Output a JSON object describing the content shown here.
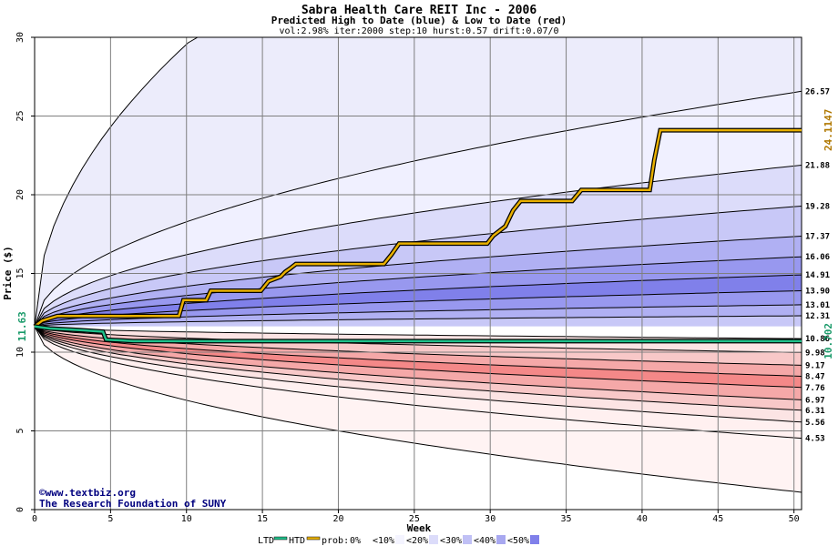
{
  "chart_data": {
    "type": "area",
    "title": "Sabra Health Care REIT Inc - 2006",
    "subtitle": "Predicted High to Date (blue) &  Low to Date (red)",
    "params": "vol:2.98% iter:2000 step:10 hurst:0.57 drift:0.07/0",
    "xlabel": "Week",
    "ylabel": "Price ($)",
    "xlim": [
      0,
      50.5
    ],
    "ylim": [
      0,
      30
    ],
    "x_ticks": [
      "0",
      "5",
      "10",
      "15",
      "20",
      "25",
      "30",
      "35",
      "40",
      "45",
      "50"
    ],
    "y_ticks": [
      "0",
      "5",
      "10",
      "15",
      "20",
      "25",
      "30"
    ],
    "start_price": 11.63,
    "start_price_label": "11.63",
    "high_to_date_value": "24.1147",
    "low_to_date_value": "10.702",
    "grid": true,
    "upper_bands": [
      {
        "label": "26.57",
        "end": 26.57,
        "color": "#f0f0ff"
      },
      {
        "label": "21.88",
        "end": 21.88,
        "color": "#dcdcfa"
      },
      {
        "label": "19.28",
        "end": 19.28,
        "color": "#c8c8f7"
      },
      {
        "label": "17.37",
        "end": 17.37,
        "color": "#b0b0f3"
      },
      {
        "label": "16.06",
        "end": 16.06,
        "color": "#9898ef"
      },
      {
        "label": "14.91",
        "end": 14.91,
        "color": "#8080ea"
      },
      {
        "label": "13.90",
        "end": 13.9,
        "color": "#9898ef"
      },
      {
        "label": "13.01",
        "end": 13.01,
        "color": "#b0b0f3"
      },
      {
        "label": "12.31",
        "end": 12.31,
        "color": "#c8c8f7"
      }
    ],
    "lower_bands": [
      {
        "label": "10.86",
        "end": 10.86,
        "color": "#ffffff"
      },
      {
        "label": "9.98",
        "end": 9.98,
        "color": "#fce4e4"
      },
      {
        "label": "9.17",
        "end": 9.17,
        "color": "#f8c8c8"
      },
      {
        "label": "8.47",
        "end": 8.47,
        "color": "#f5a8a8"
      },
      {
        "label": "7.76",
        "end": 7.76,
        "color": "#f48888"
      },
      {
        "label": "6.97",
        "end": 6.97,
        "color": "#f5a8a8"
      },
      {
        "label": "6.31",
        "end": 6.31,
        "color": "#f8c8c8"
      },
      {
        "label": "5.56",
        "end": 5.56,
        "color": "#fce4e4"
      },
      {
        "label": "4.53",
        "end": 4.53,
        "color": "#fff0f0"
      }
    ],
    "outer_upper": {
      "color": "#ececfb",
      "reaches_top_at_week": 10.5
    },
    "outer_lower": {
      "end": 1.1,
      "color": "#fff3f3"
    },
    "series": [
      {
        "name": "HTD",
        "color": "#e8b000",
        "x": [
          0,
          0.5,
          1.5,
          9.5,
          9.8,
          11.3,
          11.6,
          14.9,
          15.4,
          16.2,
          16.5,
          16.8,
          17.2,
          23,
          23.5,
          24,
          29.8,
          30.2,
          31,
          31.5,
          32,
          35.4,
          36,
          40.5,
          40.8,
          41.2,
          50.5
        ],
        "y": [
          11.63,
          12.0,
          12.3,
          12.3,
          13.3,
          13.3,
          13.9,
          13.9,
          14.5,
          14.8,
          15.1,
          15.3,
          15.6,
          15.6,
          16.2,
          16.9,
          16.9,
          17.4,
          18.0,
          19.0,
          19.6,
          19.6,
          20.3,
          20.3,
          22.2,
          24.1,
          24.1
        ]
      },
      {
        "name": "LTD",
        "color": "#1fc08a",
        "x": [
          0,
          1,
          3,
          4.5,
          4.7,
          6.5,
          50.5
        ],
        "y": [
          11.63,
          11.5,
          11.4,
          11.3,
          10.8,
          10.7,
          10.7
        ]
      }
    ],
    "legend": {
      "ltd": "LTD",
      "htd": "HTD",
      "prob": "prob:",
      "items": [
        {
          "label": "0%",
          "color": "#ffffff"
        },
        {
          "label": "<10%",
          "color": "#f4f4ff"
        },
        {
          "label": "<20%",
          "color": "#dcdcfa"
        },
        {
          "label": "<30%",
          "color": "#c0c0f5"
        },
        {
          "label": "<40%",
          "color": "#a8a8f0"
        },
        {
          "label": "<50%",
          "color": "#8080ea"
        }
      ]
    },
    "credits": [
      "©www.textbiz.org",
      "The Research Foundation of SUNY"
    ]
  }
}
